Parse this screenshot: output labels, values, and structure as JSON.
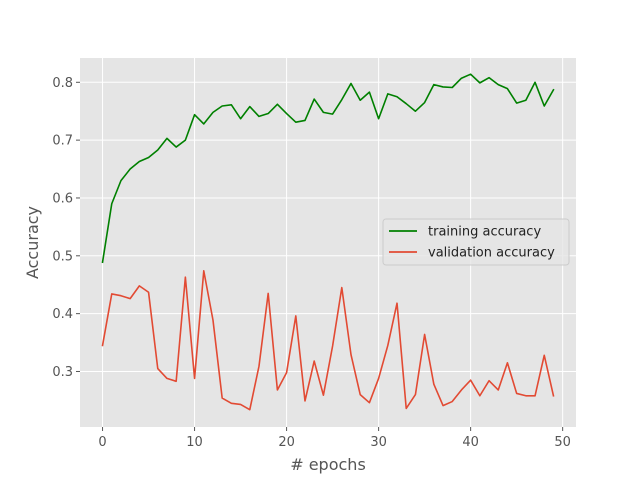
{
  "chart_data": {
    "type": "line",
    "title": "",
    "xlabel": "# epochs",
    "ylabel": "Accuracy",
    "xlim": [
      -2.45,
      51.45
    ],
    "ylim": [
      0.204,
      0.842
    ],
    "xticks": [
      0,
      10,
      20,
      30,
      40,
      50
    ],
    "yticks": [
      0.3,
      0.4,
      0.5,
      0.6,
      0.7,
      0.8
    ],
    "grid": true,
    "legend_position": "center-right",
    "x": [
      0,
      1,
      2,
      3,
      4,
      5,
      6,
      7,
      8,
      9,
      10,
      11,
      12,
      13,
      14,
      15,
      16,
      17,
      18,
      19,
      20,
      21,
      22,
      23,
      24,
      25,
      26,
      27,
      28,
      29,
      30,
      31,
      32,
      33,
      34,
      35,
      36,
      37,
      38,
      39,
      40,
      41,
      42,
      43,
      44,
      45,
      46,
      47,
      48,
      49
    ],
    "series": [
      {
        "name": "training accuracy",
        "color": "#008000",
        "values": [
          0.489,
          0.59,
          0.63,
          0.65,
          0.663,
          0.67,
          0.683,
          0.703,
          0.688,
          0.7,
          0.744,
          0.728,
          0.748,
          0.759,
          0.761,
          0.737,
          0.758,
          0.741,
          0.746,
          0.762,
          0.746,
          0.731,
          0.734,
          0.771,
          0.748,
          0.745,
          0.77,
          0.798,
          0.769,
          0.783,
          0.737,
          0.78,
          0.775,
          0.763,
          0.75,
          0.765,
          0.796,
          0.792,
          0.791,
          0.807,
          0.814,
          0.799,
          0.808,
          0.796,
          0.789,
          0.764,
          0.769,
          0.8,
          0.759,
          0.787
        ]
      },
      {
        "name": "validation accuracy",
        "color": "#E24A33",
        "values": [
          0.345,
          0.434,
          0.431,
          0.426,
          0.448,
          0.437,
          0.305,
          0.288,
          0.283,
          0.463,
          0.288,
          0.474,
          0.389,
          0.254,
          0.245,
          0.243,
          0.234,
          0.309,
          0.435,
          0.268,
          0.298,
          0.396,
          0.249,
          0.318,
          0.259,
          0.344,
          0.445,
          0.329,
          0.26,
          0.246,
          0.288,
          0.345,
          0.418,
          0.236,
          0.26,
          0.364,
          0.278,
          0.241,
          0.248,
          0.268,
          0.285,
          0.258,
          0.284,
          0.268,
          0.315,
          0.262,
          0.258,
          0.258,
          0.328,
          0.258
        ]
      }
    ]
  }
}
